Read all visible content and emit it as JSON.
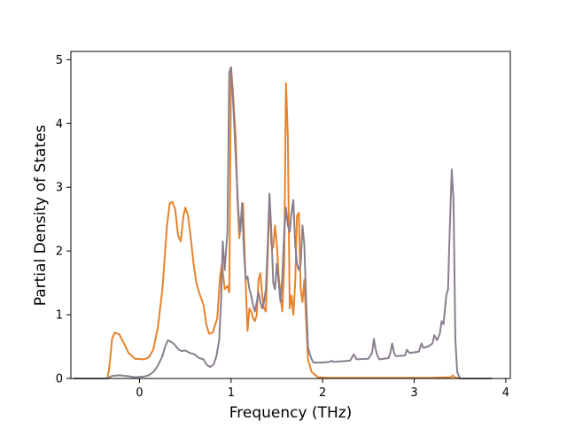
{
  "chart_data": {
    "type": "line",
    "title": "",
    "xlabel": "Frequency (THz)",
    "ylabel": "Partial Density of States",
    "xlim": [
      -0.75,
      4.05
    ],
    "ylim": [
      0,
      5.13
    ],
    "xticks": [
      0,
      1,
      2,
      3,
      4
    ],
    "yticks": [
      0,
      1,
      2,
      3,
      4,
      5
    ],
    "grid": false,
    "legend": "none",
    "series": [
      {
        "color": "#e8822a",
        "points": [
          [
            -0.72,
            0
          ],
          [
            -0.35,
            0
          ],
          [
            -0.33,
            0.18
          ],
          [
            -0.3,
            0.62
          ],
          [
            -0.27,
            0.72
          ],
          [
            -0.22,
            0.69
          ],
          [
            -0.17,
            0.55
          ],
          [
            -0.12,
            0.4
          ],
          [
            -0.05,
            0.31
          ],
          [
            0.05,
            0.3
          ],
          [
            0.1,
            0.33
          ],
          [
            0.15,
            0.45
          ],
          [
            0.2,
            0.8
          ],
          [
            0.25,
            1.4
          ],
          [
            0.3,
            2.4
          ],
          [
            0.33,
            2.75
          ],
          [
            0.36,
            2.77
          ],
          [
            0.39,
            2.65
          ],
          [
            0.42,
            2.25
          ],
          [
            0.45,
            2.15
          ],
          [
            0.48,
            2.55
          ],
          [
            0.5,
            2.68
          ],
          [
            0.53,
            2.55
          ],
          [
            0.56,
            2.2
          ],
          [
            0.59,
            1.8
          ],
          [
            0.62,
            1.5
          ],
          [
            0.65,
            1.35
          ],
          [
            0.7,
            1.15
          ],
          [
            0.73,
            0.85
          ],
          [
            0.76,
            0.7
          ],
          [
            0.8,
            0.72
          ],
          [
            0.85,
            0.95
          ],
          [
            0.88,
            1.6
          ],
          [
            0.9,
            1.8
          ],
          [
            0.93,
            1.4
          ],
          [
            0.96,
            1.45
          ],
          [
            0.98,
            1.35
          ],
          [
            1.0,
            4.88
          ],
          [
            1.02,
            4.5
          ],
          [
            1.05,
            3.8
          ],
          [
            1.07,
            2.8
          ],
          [
            1.09,
            2.2
          ],
          [
            1.11,
            2.5
          ],
          [
            1.13,
            2.75
          ],
          [
            1.15,
            1.9
          ],
          [
            1.17,
            1.1
          ],
          [
            1.18,
            0.75
          ],
          [
            1.2,
            1.1
          ],
          [
            1.22,
            1.05
          ],
          [
            1.24,
            0.95
          ],
          [
            1.26,
            0.9
          ],
          [
            1.28,
            1.0
          ],
          [
            1.3,
            1.55
          ],
          [
            1.32,
            1.65
          ],
          [
            1.34,
            1.3
          ],
          [
            1.36,
            1.1
          ],
          [
            1.38,
            1.05
          ],
          [
            1.4,
            1.9
          ],
          [
            1.42,
            2.85
          ],
          [
            1.44,
            2.1
          ],
          [
            1.46,
            2.05
          ],
          [
            1.48,
            2.4
          ],
          [
            1.5,
            2.1
          ],
          [
            1.52,
            1.6
          ],
          [
            1.54,
            1.3
          ],
          [
            1.56,
            1.05
          ],
          [
            1.58,
            1.8
          ],
          [
            1.6,
            4.63
          ],
          [
            1.62,
            3.8
          ],
          [
            1.64,
            1.1
          ],
          [
            1.66,
            1.3
          ],
          [
            1.68,
            1.0
          ],
          [
            1.7,
            1.5
          ],
          [
            1.72,
            2.55
          ],
          [
            1.74,
            2.6
          ],
          [
            1.76,
            1.4
          ],
          [
            1.78,
            1.2
          ],
          [
            1.8,
            1.55
          ],
          [
            1.82,
            0.9
          ],
          [
            1.84,
            0.3
          ],
          [
            1.88,
            0.1
          ],
          [
            1.95,
            0.02
          ],
          [
            2.05,
            0.01
          ],
          [
            3.2,
            0.01
          ],
          [
            3.4,
            0.02
          ],
          [
            3.42,
            0.05
          ],
          [
            3.44,
            0.02
          ],
          [
            3.5,
            0
          ],
          [
            3.85,
            0
          ]
        ]
      },
      {
        "color": "#8a7f8e",
        "points": [
          [
            -0.72,
            0
          ],
          [
            -0.35,
            0
          ],
          [
            -0.3,
            0.04
          ],
          [
            -0.22,
            0.05
          ],
          [
            -0.15,
            0.04
          ],
          [
            -0.05,
            0.02
          ],
          [
            0.05,
            0.03
          ],
          [
            0.1,
            0.05
          ],
          [
            0.15,
            0.1
          ],
          [
            0.2,
            0.2
          ],
          [
            0.25,
            0.35
          ],
          [
            0.28,
            0.5
          ],
          [
            0.31,
            0.6
          ],
          [
            0.34,
            0.58
          ],
          [
            0.37,
            0.55
          ],
          [
            0.4,
            0.5
          ],
          [
            0.43,
            0.45
          ],
          [
            0.46,
            0.43
          ],
          [
            0.5,
            0.44
          ],
          [
            0.55,
            0.4
          ],
          [
            0.6,
            0.38
          ],
          [
            0.65,
            0.32
          ],
          [
            0.7,
            0.3
          ],
          [
            0.73,
            0.22
          ],
          [
            0.77,
            0.18
          ],
          [
            0.81,
            0.22
          ],
          [
            0.84,
            0.35
          ],
          [
            0.87,
            0.6
          ],
          [
            0.89,
            1.2
          ],
          [
            0.91,
            2.15
          ],
          [
            0.93,
            1.7
          ],
          [
            0.96,
            2.3
          ],
          [
            0.98,
            4.8
          ],
          [
            1.0,
            4.88
          ],
          [
            1.02,
            4.4
          ],
          [
            1.04,
            3.8
          ],
          [
            1.06,
            3.2
          ],
          [
            1.08,
            2.6
          ],
          [
            1.1,
            2.3
          ],
          [
            1.12,
            2.75
          ],
          [
            1.14,
            2.0
          ],
          [
            1.16,
            1.55
          ],
          [
            1.18,
            1.6
          ],
          [
            1.2,
            1.4
          ],
          [
            1.22,
            1.3
          ],
          [
            1.24,
            1.15
          ],
          [
            1.26,
            1.05
          ],
          [
            1.28,
            1.2
          ],
          [
            1.3,
            1.35
          ],
          [
            1.32,
            1.2
          ],
          [
            1.34,
            1.1
          ],
          [
            1.36,
            1.2
          ],
          [
            1.38,
            1.4
          ],
          [
            1.4,
            2.1
          ],
          [
            1.42,
            2.9
          ],
          [
            1.44,
            2.3
          ],
          [
            1.46,
            1.5
          ],
          [
            1.48,
            1.4
          ],
          [
            1.5,
            1.8
          ],
          [
            1.52,
            1.5
          ],
          [
            1.54,
            1.2
          ],
          [
            1.56,
            1.6
          ],
          [
            1.58,
            2.3
          ],
          [
            1.6,
            2.68
          ],
          [
            1.62,
            2.4
          ],
          [
            1.64,
            2.3
          ],
          [
            1.66,
            2.6
          ],
          [
            1.68,
            2.8
          ],
          [
            1.7,
            2.1
          ],
          [
            1.72,
            1.8
          ],
          [
            1.74,
            1.7
          ],
          [
            1.76,
            1.8
          ],
          [
            1.78,
            2.4
          ],
          [
            1.8,
            2.1
          ],
          [
            1.82,
            1.2
          ],
          [
            1.84,
            0.5
          ],
          [
            1.86,
            0.38
          ],
          [
            1.88,
            0.3
          ],
          [
            1.9,
            0.25
          ],
          [
            2.0,
            0.25
          ],
          [
            2.08,
            0.26
          ],
          [
            2.1,
            0.28
          ],
          [
            2.12,
            0.26
          ],
          [
            2.3,
            0.28
          ],
          [
            2.34,
            0.38
          ],
          [
            2.37,
            0.3
          ],
          [
            2.5,
            0.31
          ],
          [
            2.54,
            0.4
          ],
          [
            2.56,
            0.62
          ],
          [
            2.58,
            0.45
          ],
          [
            2.6,
            0.35
          ],
          [
            2.62,
            0.3
          ],
          [
            2.72,
            0.32
          ],
          [
            2.74,
            0.4
          ],
          [
            2.76,
            0.55
          ],
          [
            2.78,
            0.4
          ],
          [
            2.8,
            0.35
          ],
          [
            2.9,
            0.36
          ],
          [
            2.92,
            0.45
          ],
          [
            2.95,
            0.4
          ],
          [
            3.05,
            0.42
          ],
          [
            3.08,
            0.55
          ],
          [
            3.1,
            0.48
          ],
          [
            3.15,
            0.5
          ],
          [
            3.2,
            0.55
          ],
          [
            3.22,
            0.68
          ],
          [
            3.25,
            0.6
          ],
          [
            3.28,
            0.7
          ],
          [
            3.3,
            0.9
          ],
          [
            3.32,
            0.85
          ],
          [
            3.35,
            1.3
          ],
          [
            3.37,
            1.4
          ],
          [
            3.39,
            2.4
          ],
          [
            3.41,
            3.28
          ],
          [
            3.43,
            2.8
          ],
          [
            3.45,
            0.6
          ],
          [
            3.47,
            0.1
          ],
          [
            3.5,
            0
          ],
          [
            3.85,
            0
          ]
        ]
      }
    ]
  }
}
